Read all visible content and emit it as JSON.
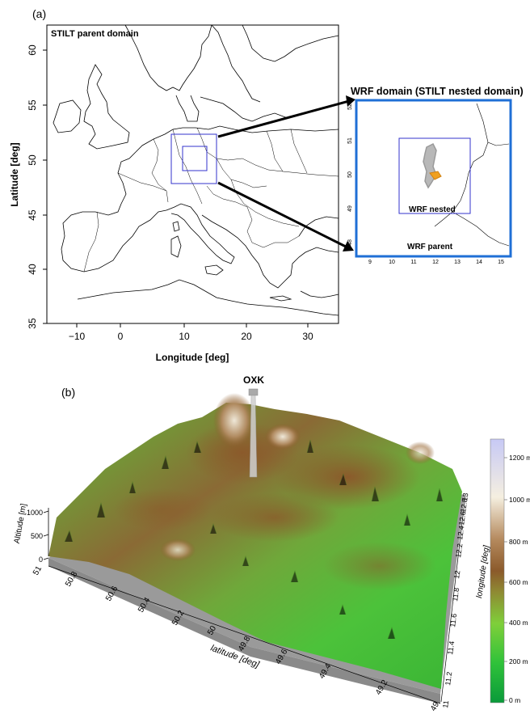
{
  "panel_a": {
    "tag": "(a)",
    "title": "STILT parent domain",
    "xlabel": "Longitude [deg]",
    "ylabel": "Latitude [deg]",
    "x_ticks": [
      "−10",
      "0",
      "10",
      "20",
      "30"
    ],
    "y_ticks": [
      "60",
      "55",
      "50",
      "45",
      "40",
      "35"
    ],
    "inset": {
      "title": "WRF domain (STILT nested domain)",
      "nested_label": "WRF nested",
      "parent_label": "WRF parent",
      "x_ticks": [
        "9",
        "10",
        "11",
        "12",
        "13",
        "14",
        "15"
      ],
      "y_ticks": [
        "52",
        "51",
        "50",
        "49",
        "48"
      ],
      "frame_color": "#1f6fd6",
      "domain_color": "#3333cc",
      "marker_color": "#f0a020"
    }
  },
  "panel_b": {
    "tag": "(b)",
    "station": "OXK",
    "zlabel": "Altitude [m]",
    "z_ticks": [
      "1000",
      "500",
      "0"
    ],
    "lat_label": "latitude [deg]",
    "lat_ticks": [
      "51",
      "50.8",
      "50.6",
      "50.4",
      "50.2",
      "50",
      "49.8",
      "49.6",
      "49.4",
      "49.2",
      "49"
    ],
    "lon_label": "longitude [deg]",
    "lon_ticks": [
      "11",
      "11.2",
      "11.4",
      "11.6",
      "11.8",
      "12",
      "12.2",
      "12.4",
      "12.6",
      "12.8",
      "13"
    ],
    "colorbar": {
      "labels": [
        "1200 m",
        "1000 m",
        "800 m",
        "600 m",
        "400 m",
        "200 m",
        "0 m"
      ],
      "colors": [
        "#0a9a3a",
        "#4bd22f",
        "#7fbf3a",
        "#8a7a30",
        "#8b5a2b",
        "#c9a47a",
        "#f5efe0",
        "#c7c9f5"
      ]
    }
  }
}
